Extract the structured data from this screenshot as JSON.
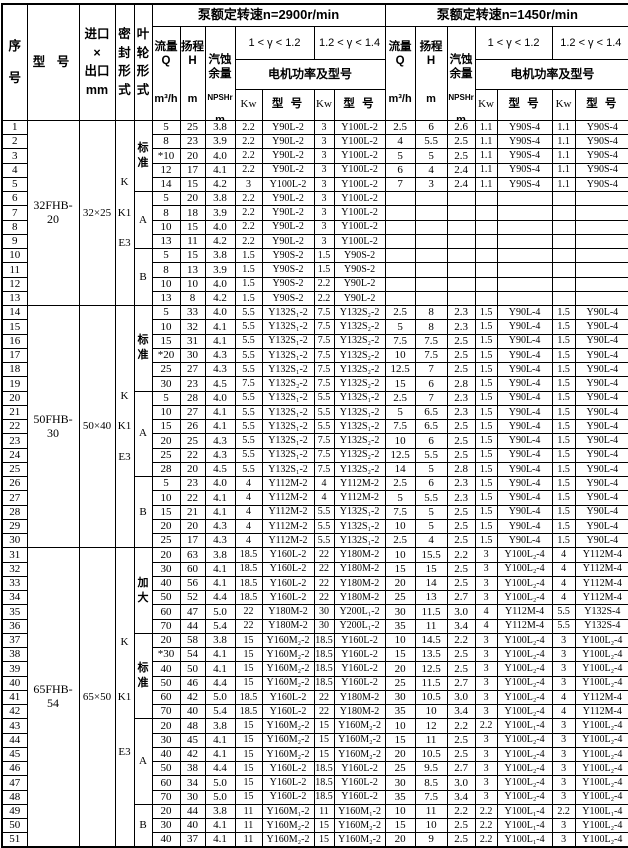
{
  "header": {
    "serial": "序\n号",
    "model": "型  号",
    "inlet_outlet": "进口\n×\n出口\nmm",
    "seal": "密\n封\n形\n式",
    "impeller": "叶\n轮\n形\n式",
    "speed_2900": "泵额定转速n=2900r/min",
    "speed_1450": "泵额定转速n=1450r/min",
    "flow_label": "流量\nQ",
    "flow_unit": "m³/h",
    "head_label": "扬程\nH",
    "head_unit": "m",
    "npsh_cn": "汽蚀\n余量",
    "npsh_sub": "NPSHr",
    "npsh_unit": "m",
    "gamma_low": "1 < γ < 1.2",
    "gamma_high": "1.2 < γ < 1.4",
    "motor": "电机功率及型号",
    "kw": "Kw",
    "model_col": "型 号"
  },
  "groups": [
    {
      "model": "32FHB-20",
      "size": "32×25",
      "seals": [
        "K",
        "K1",
        "E3"
      ],
      "bands": [
        {
          "impeller": "标准",
          "rows": [
            [
              "1",
              "5",
              "25",
              "3.8",
              "2.2",
              "Y90L-2",
              "3",
              "Y100L-2",
              "2.5",
              "6",
              "2.6",
              "1.1",
              "Y90S-4",
              "1.1",
              "Y90S-4"
            ],
            [
              "2",
              "8",
              "23",
              "3.9",
              "2.2",
              "Y90L-2",
              "3",
              "Y100L-2",
              "4",
              "5.5",
              "2.5",
              "1.1",
              "Y90S-4",
              "1.1",
              "Y90S-4"
            ],
            [
              "3",
              "*10",
              "20",
              "4.0",
              "2.2",
              "Y90L-2",
              "3",
              "Y100L-2",
              "5",
              "5",
              "2.5",
              "1.1",
              "Y90S-4",
              "1.1",
              "Y90S-4"
            ],
            [
              "4",
              "12",
              "17",
              "4.1",
              "2.2",
              "Y90L-2",
              "3",
              "Y100L-2",
              "6",
              "4",
              "2.4",
              "1.1",
              "Y90S-4",
              "1.1",
              "Y90S-4"
            ],
            [
              "5",
              "14",
              "15",
              "4.2",
              "3",
              "Y100L-2",
              "3",
              "Y100L-2",
              "7",
              "3",
              "2.4",
              "1.1",
              "Y90S-4",
              "1.1",
              "Y90S-4"
            ]
          ]
        },
        {
          "impeller": "A",
          "rows": [
            [
              "6",
              "5",
              "20",
              "3.8",
              "2.2",
              "Y90L-2",
              "3",
              "Y100L-2",
              "",
              "",
              "",
              "",
              "",
              "",
              ""
            ],
            [
              "7",
              "8",
              "18",
              "3.9",
              "2.2",
              "Y90L-2",
              "3",
              "Y100L-2",
              "",
              "",
              "",
              "",
              "",
              "",
              ""
            ],
            [
              "8",
              "10",
              "15",
              "4.0",
              "2.2",
              "Y90L-2",
              "3",
              "Y100L-2",
              "",
              "",
              "",
              "",
              "",
              "",
              ""
            ],
            [
              "9",
              "13",
              "11",
              "4.2",
              "2.2",
              "Y90L-2",
              "3",
              "Y100L-2",
              "",
              "",
              "",
              "",
              "",
              "",
              ""
            ]
          ]
        },
        {
          "impeller": "B",
          "rows": [
            [
              "10",
              "5",
              "15",
              "3.8",
              "1.5",
              "Y90S-2",
              "1.5",
              "Y90S-2",
              "",
              "",
              "",
              "",
              "",
              "",
              ""
            ],
            [
              "11",
              "8",
              "13",
              "3.9",
              "1.5",
              "Y90S-2",
              "1.5",
              "Y90S-2",
              "",
              "",
              "",
              "",
              "",
              "",
              ""
            ],
            [
              "12",
              "10",
              "10",
              "4.0",
              "1.5",
              "Y90S-2",
              "2.2",
              "Y90L-2",
              "",
              "",
              "",
              "",
              "",
              "",
              ""
            ],
            [
              "13",
              "13",
              "8",
              "4.2",
              "1.5",
              "Y90S-2",
              "2.2",
              "Y90L-2",
              "",
              "",
              "",
              "",
              "",
              "",
              ""
            ]
          ]
        }
      ]
    },
    {
      "model": "50FHB-30",
      "size": "50×40",
      "seals": [
        "K",
        "K1",
        "E3"
      ],
      "bands": [
        {
          "impeller": "标准",
          "rows": [
            [
              "14",
              "5",
              "33",
              "4.0",
              "5.5",
              "Y132S₁-2",
              "7.5",
              "Y132S₂-2",
              "2.5",
              "8",
              "2.3",
              "1.5",
              "Y90L-4",
              "1.5",
              "Y90L-4"
            ],
            [
              "15",
              "10",
              "32",
              "4.1",
              "5.5",
              "Y132S₁-2",
              "7.5",
              "Y132S₂-2",
              "5",
              "8",
              "2.3",
              "1.5",
              "Y90L-4",
              "1.5",
              "Y90L-4"
            ],
            [
              "16",
              "15",
              "31",
              "4.1",
              "5.5",
              "Y132S₁-2",
              "7.5",
              "Y132S₂-2",
              "7.5",
              "7.5",
              "2.5",
              "1.5",
              "Y90L-4",
              "1.5",
              "Y90L-4"
            ],
            [
              "17",
              "*20",
              "30",
              "4.3",
              "5.5",
              "Y132S₁-2",
              "7.5",
              "Y132S₂-2",
              "10",
              "7.5",
              "2.5",
              "1.5",
              "Y90L-4",
              "1.5",
              "Y90L-4"
            ],
            [
              "18",
              "25",
              "27",
              "4.3",
              "5.5",
              "Y132S₁-2",
              "7.5",
              "Y132S₂-2",
              "12.5",
              "7",
              "2.5",
              "1.5",
              "Y90L-4",
              "1.5",
              "Y90L-4"
            ],
            [
              "19",
              "30",
              "23",
              "4.5",
              "7.5",
              "Y132S₂-2",
              "7.5",
              "Y132S₂-2",
              "15",
              "6",
              "2.8",
              "1.5",
              "Y90L-4",
              "1.5",
              "Y90L-4"
            ]
          ]
        },
        {
          "impeller": "A",
          "rows": [
            [
              "20",
              "5",
              "28",
              "4.0",
              "5.5",
              "Y132S₁-2",
              "5.5",
              "Y132S₁-2",
              "2.5",
              "7",
              "2.3",
              "1.5",
              "Y90L-4",
              "1.5",
              "Y90L-4"
            ],
            [
              "21",
              "10",
              "27",
              "4.1",
              "5.5",
              "Y132S₁-2",
              "5.5",
              "Y132S₁-2",
              "5",
              "6.5",
              "2.3",
              "1.5",
              "Y90L-4",
              "1.5",
              "Y90L-4"
            ],
            [
              "22",
              "15",
              "26",
              "4.1",
              "5.5",
              "Y132S₁-2",
              "5.5",
              "Y132S₁-2",
              "7.5",
              "6.5",
              "2.5",
              "1.5",
              "Y90L-4",
              "1.5",
              "Y90L-4"
            ],
            [
              "23",
              "20",
              "25",
              "4.3",
              "5.5",
              "Y132S₁-2",
              "7.5",
              "Y132S₂-2",
              "10",
              "6",
              "2.5",
              "1.5",
              "Y90L-4",
              "1.5",
              "Y90L-4"
            ],
            [
              "24",
              "25",
              "22",
              "4.3",
              "5.5",
              "Y132S₁-2",
              "7.5",
              "Y132S₂-2",
              "12.5",
              "5.5",
              "2.5",
              "1.5",
              "Y90L-4",
              "1.5",
              "Y90L-4"
            ],
            [
              "25",
              "28",
              "20",
              "4.5",
              "5.5",
              "Y132S₁-2",
              "7.5",
              "Y132S₂-2",
              "14",
              "5",
              "2.8",
              "1.5",
              "Y90L-4",
              "1.5",
              "Y90L-4"
            ]
          ]
        },
        {
          "impeller": "B",
          "rows": [
            [
              "26",
              "5",
              "23",
              "4.0",
              "4",
              "Y112M-2",
              "4",
              "Y112M-2",
              "2.5",
              "6",
              "2.3",
              "1.5",
              "Y90L-4",
              "1.5",
              "Y90L-4"
            ],
            [
              "27",
              "10",
              "22",
              "4.1",
              "4",
              "Y112M-2",
              "4",
              "Y112M-2",
              "5",
              "5.5",
              "2.3",
              "1.5",
              "Y90L-4",
              "1.5",
              "Y90L-4"
            ],
            [
              "28",
              "15",
              "21",
              "4.1",
              "4",
              "Y112M-2",
              "5.5",
              "Y132S₁-2",
              "7.5",
              "5",
              "2.5",
              "1.5",
              "Y90L-4",
              "1.5",
              "Y90L-4"
            ],
            [
              "29",
              "20",
              "20",
              "4.3",
              "4",
              "Y112M-2",
              "5.5",
              "Y132S₁-2",
              "10",
              "5",
              "2.5",
              "1.5",
              "Y90L-4",
              "1.5",
              "Y90L-4"
            ],
            [
              "30",
              "25",
              "17",
              "4.3",
              "4",
              "Y112M-2",
              "5.5",
              "Y132S₁-2",
              "2.5",
              "4",
              "2.5",
              "1.5",
              "Y90L-4",
              "1.5",
              "Y90L-4"
            ]
          ]
        }
      ]
    },
    {
      "model": "65FHB-54",
      "size": "65×50",
      "seals": [
        "K",
        "K1",
        "E3"
      ],
      "bands": [
        {
          "impeller": "加大",
          "rows": [
            [
              "31",
              "20",
              "63",
              "3.8",
              "18.5",
              "Y160L-2",
              "22",
              "Y180M-2",
              "10",
              "15.5",
              "2.2",
              "3",
              "Y100L₂-4",
              "4",
              "Y112M-4"
            ],
            [
              "32",
              "30",
              "60",
              "4.1",
              "18.5",
              "Y160L-2",
              "22",
              "Y180M-2",
              "15",
              "15",
              "2.5",
              "3",
              "Y100L₂-4",
              "4",
              "Y112M-4"
            ],
            [
              "33",
              "40",
              "56",
              "4.1",
              "18.5",
              "Y160L-2",
              "22",
              "Y180M-2",
              "20",
              "14",
              "2.5",
              "3",
              "Y100L₂-4",
              "4",
              "Y112M-4"
            ],
            [
              "34",
              "50",
              "52",
              "4.4",
              "18.5",
              "Y160L-2",
              "22",
              "Y180M-2",
              "25",
              "13",
              "2.7",
              "3",
              "Y100L₂-4",
              "4",
              "Y112M-4"
            ],
            [
              "35",
              "60",
              "47",
              "5.0",
              "22",
              "Y180M-2",
              "30",
              "Y200L₁-2",
              "30",
              "11.5",
              "3.0",
              "4",
              "Y112M-4",
              "5.5",
              "Y132S-4"
            ],
            [
              "36",
              "70",
              "44",
              "5.4",
              "22",
              "Y180M-2",
              "30",
              "Y200L₁-2",
              "35",
              "11",
              "3.4",
              "4",
              "Y112M-4",
              "5.5",
              "Y132S-4"
            ]
          ]
        },
        {
          "impeller": "标准",
          "rows": [
            [
              "37",
              "20",
              "58",
              "3.8",
              "15",
              "Y160M₂-2",
              "18.5",
              "Y160L-2",
              "10",
              "14.5",
              "2.2",
              "3",
              "Y100L₂-4",
              "3",
              "Y100L₂-4"
            ],
            [
              "38",
              "*30",
              "54",
              "4.1",
              "15",
              "Y160M₂-2",
              "18.5",
              "Y160L-2",
              "15",
              "13.5",
              "2.5",
              "3",
              "Y100L₂-4",
              "3",
              "Y100L₂-4"
            ],
            [
              "39",
              "40",
              "50",
              "4.1",
              "15",
              "Y160M₂-2",
              "18.5",
              "Y160L-2",
              "20",
              "12.5",
              "2.5",
              "3",
              "Y100L₂-4",
              "3",
              "Y100L₂-4"
            ],
            [
              "40",
              "50",
              "46",
              "4.4",
              "15",
              "Y160M₂-2",
              "18.5",
              "Y160L-2",
              "25",
              "11.5",
              "2.7",
              "3",
              "Y100L₂-4",
              "3",
              "Y100L₂-4"
            ],
            [
              "41",
              "60",
              "42",
              "5.0",
              "18.5",
              "Y160L-2",
              "22",
              "Y180M-2",
              "30",
              "10.5",
              "3.0",
              "3",
              "Y100L₂-4",
              "4",
              "Y112M-4"
            ],
            [
              "42",
              "70",
              "40",
              "5.4",
              "18.5",
              "Y160L-2",
              "22",
              "Y180M-2",
              "35",
              "10",
              "3.4",
              "3",
              "Y100L₂-4",
              "4",
              "Y112M-4"
            ]
          ]
        },
        {
          "impeller": "A",
          "rows": [
            [
              "43",
              "20",
              "48",
              "3.8",
              "15",
              "Y160M₂-2",
              "15",
              "Y160M₂-2",
              "10",
              "12",
              "2.2",
              "2.2",
              "Y100L₁-4",
              "3",
              "Y100L₂-4"
            ],
            [
              "44",
              "30",
              "45",
              "4.1",
              "15",
              "Y160M₂-2",
              "15",
              "Y160M₂-2",
              "15",
              "11",
              "2.5",
              "3",
              "Y100L₂-4",
              "3",
              "Y100L₂-4"
            ],
            [
              "45",
              "40",
              "42",
              "4.1",
              "15",
              "Y160M₂-2",
              "15",
              "Y160M₂-2",
              "20",
              "10.5",
              "2.5",
              "3",
              "Y100L₂-4",
              "3",
              "Y100L₂-4"
            ],
            [
              "46",
              "50",
              "38",
              "4.4",
              "15",
              "Y160L-2",
              "18.5",
              "Y160L-2",
              "25",
              "9.5",
              "2.7",
              "3",
              "Y100L₂-4",
              "3",
              "Y100L₂-4"
            ],
            [
              "47",
              "60",
              "34",
              "5.0",
              "15",
              "Y160L-2",
              "18.5",
              "Y160L-2",
              "30",
              "8.5",
              "3.0",
              "3",
              "Y100L₂-4",
              "3",
              "Y100L₂-4"
            ],
            [
              "48",
              "70",
              "30",
              "5.0",
              "15",
              "Y160L-2",
              "18.5",
              "Y160L-2",
              "35",
              "7.5",
              "3.4",
              "3",
              "Y100L₂-4",
              "3",
              "Y100L₂-4"
            ]
          ]
        },
        {
          "impeller": "B",
          "rows": [
            [
              "49",
              "20",
              "44",
              "3.8",
              "11",
              "Y160M₁-2",
              "11",
              "Y160M₁-2",
              "10",
              "11",
              "2.2",
              "2.2",
              "Y100L₁-4",
              "2.2",
              "Y100L₁-4"
            ],
            [
              "50",
              "30",
              "40",
              "4.1",
              "11",
              "Y160M₂-2",
              "15",
              "Y160M₂-2",
              "15",
              "10",
              "2.5",
              "2.2",
              "Y100L₁-4",
              "3",
              "Y100L₂-4"
            ],
            [
              "51",
              "40",
              "37",
              "4.1",
              "11",
              "Y160M₂-2",
              "15",
              "Y160M₂-2",
              "20",
              "9",
              "2.5",
              "2.2",
              "Y100L₁-4",
              "3",
              "Y100L₂-4"
            ]
          ]
        }
      ]
    }
  ]
}
